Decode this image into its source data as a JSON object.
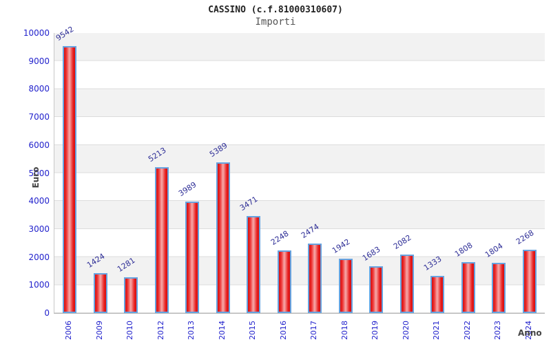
{
  "header": {
    "title": "CASSINO (c.f.81000310607)",
    "subtitle": "Importi"
  },
  "chart_data": {
    "type": "bar",
    "title": "CASSINO (c.f.81000310607)",
    "subtitle": "Importi",
    "xlabel": "Anno",
    "ylabel": "Euro",
    "categories": [
      "2006",
      "2009",
      "2010",
      "2012",
      "2013",
      "2014",
      "2015",
      "2016",
      "2017",
      "2018",
      "2019",
      "2020",
      "2021",
      "2022",
      "2023",
      "2024"
    ],
    "values": [
      9542,
      1424,
      1281,
      5213,
      3989,
      5389,
      3471,
      2248,
      2474,
      1942,
      1683,
      2082,
      1333,
      1808,
      1804,
      2268
    ],
    "ylim": [
      0,
      10000
    ],
    "yticks": [
      0,
      1000,
      2000,
      3000,
      4000,
      5000,
      6000,
      7000,
      8000,
      9000,
      10000
    ],
    "grid": "horizontal-bands",
    "legend": "none",
    "value_labels": "rotated above bars",
    "colors": {
      "bar_fill": "#dd1111",
      "bar_highlight": "#f7a8a8",
      "bar_border": "#66a3e0",
      "tick_label": "#2222cc",
      "value_label": "#2d2d96",
      "axis_title": "#444444",
      "title": "#222222",
      "subtitle": "#555555",
      "band": "#f2f2f2",
      "gridline": "#dcdcdc"
    }
  }
}
